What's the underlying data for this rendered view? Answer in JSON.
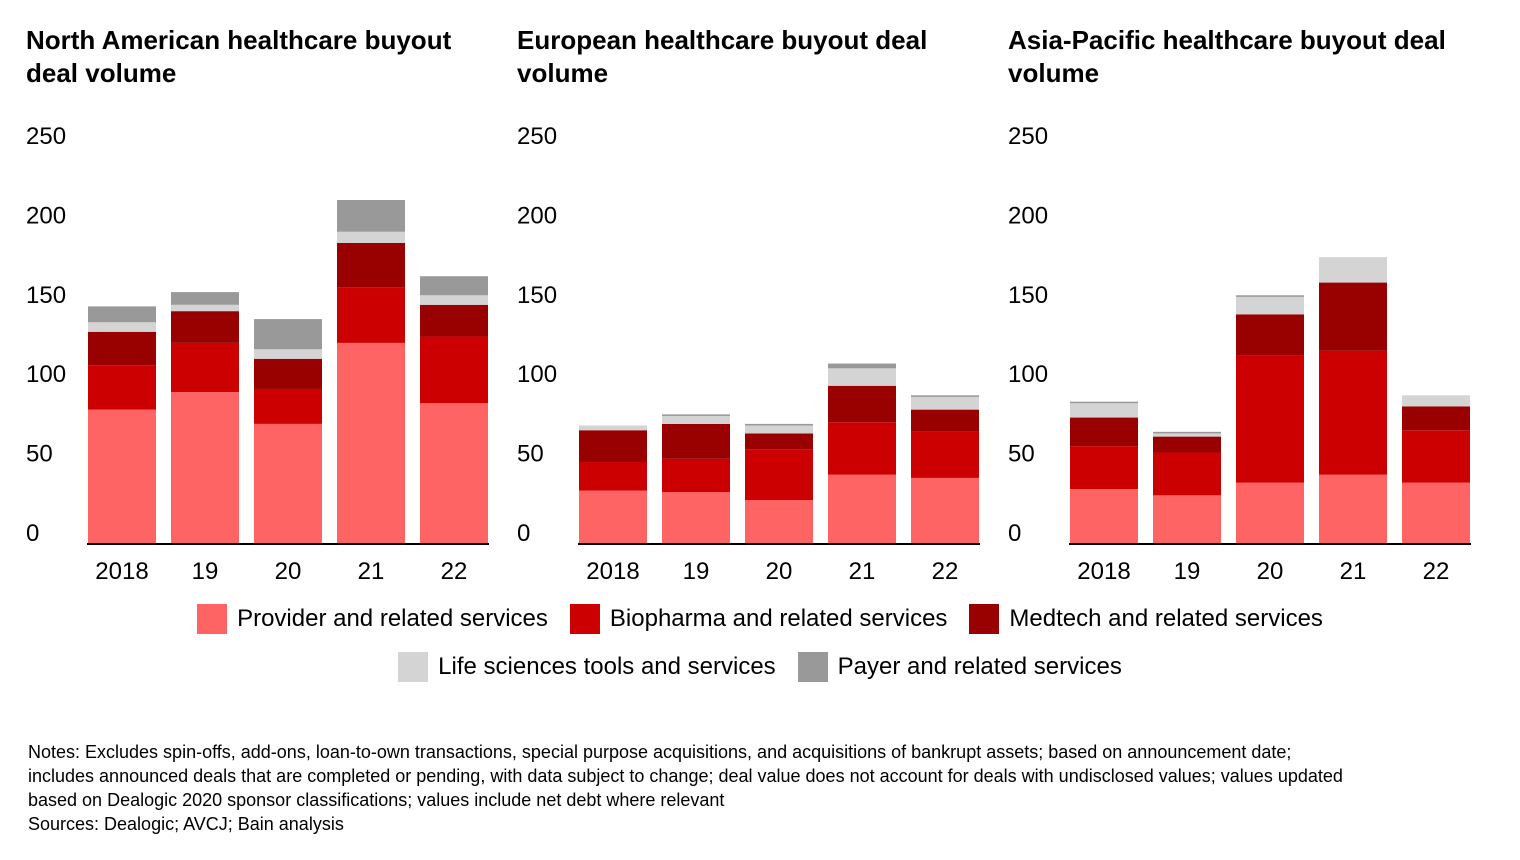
{
  "colors": {
    "provider": "#ff6464",
    "biopharma": "#cc0000",
    "medtech": "#990000",
    "life_sciences": "#d4d4d4",
    "payer": "#999999"
  },
  "legend": {
    "row1": [
      {
        "key": "provider",
        "label": "Provider and related services"
      },
      {
        "key": "biopharma",
        "label": "Biopharma and related services"
      },
      {
        "key": "medtech",
        "label": "Medtech and related services"
      }
    ],
    "row2": [
      {
        "key": "life_sciences",
        "label": "Life sciences tools and services"
      },
      {
        "key": "payer",
        "label": "Payer and related services"
      }
    ]
  },
  "chart_data": [
    {
      "type": "bar",
      "stacked": true,
      "title": "North American healthcare buyout deal volume",
      "categories": [
        "2018",
        "19",
        "20",
        "21",
        "22"
      ],
      "ylim": [
        0,
        250
      ],
      "yticks": [
        "0",
        "50",
        "100",
        "150",
        "200",
        "250"
      ],
      "series": [
        {
          "name": "Provider and related services",
          "key": "provider",
          "values": [
            84,
            95,
            75,
            126,
            88
          ]
        },
        {
          "name": "Biopharma and related services",
          "key": "biopharma",
          "values": [
            28,
            31,
            22,
            35,
            42
          ]
        },
        {
          "name": "Medtech and related services",
          "key": "medtech",
          "values": [
            21,
            20,
            19,
            28,
            20
          ]
        },
        {
          "name": "Life sciences tools and services",
          "key": "life_sciences",
          "values": [
            6,
            4,
            6,
            7,
            6
          ]
        },
        {
          "name": "Payer and related services",
          "key": "payer",
          "values": [
            10,
            8,
            19,
            20,
            12
          ]
        }
      ]
    },
    {
      "type": "bar",
      "stacked": true,
      "title": "European healthcare buyout deal volume",
      "categories": [
        "2018",
        "19",
        "20",
        "21",
        "22"
      ],
      "ylim": [
        0,
        250
      ],
      "yticks": [
        "0",
        "50",
        "100",
        "150",
        "200",
        "250"
      ],
      "series": [
        {
          "name": "Provider and related services",
          "key": "provider",
          "values": [
            33,
            32,
            27,
            43,
            41
          ]
        },
        {
          "name": "Biopharma and related services",
          "key": "biopharma",
          "values": [
            18,
            21,
            32,
            33,
            29
          ]
        },
        {
          "name": "Medtech and related services",
          "key": "medtech",
          "values": [
            20,
            22,
            10,
            23,
            14
          ]
        },
        {
          "name": "Life sciences tools and services",
          "key": "life_sciences",
          "values": [
            3,
            5,
            5,
            11,
            8
          ]
        },
        {
          "name": "Payer and related services",
          "key": "payer",
          "values": [
            0,
            1,
            1,
            3,
            1
          ]
        }
      ]
    },
    {
      "type": "bar",
      "stacked": true,
      "title": "Asia-Pacific healthcare buyout deal volume",
      "categories": [
        "2018",
        "19",
        "20",
        "21",
        "22"
      ],
      "ylim": [
        0,
        250
      ],
      "yticks": [
        "0",
        "50",
        "100",
        "150",
        "200",
        "250"
      ],
      "series": [
        {
          "name": "Provider and related services",
          "key": "provider",
          "values": [
            34,
            30,
            38,
            43,
            38
          ]
        },
        {
          "name": "Biopharma and related services",
          "key": "biopharma",
          "values": [
            27,
            27,
            80,
            78,
            33
          ]
        },
        {
          "name": "Medtech and related services",
          "key": "medtech",
          "values": [
            18,
            10,
            26,
            43,
            15
          ]
        },
        {
          "name": "Life sciences tools and services",
          "key": "life_sciences",
          "values": [
            9,
            2,
            11,
            16,
            7
          ]
        },
        {
          "name": "Payer and related services",
          "key": "payer",
          "values": [
            1,
            1,
            1,
            0,
            0
          ]
        }
      ]
    }
  ],
  "notes": {
    "line1": "Notes: Excludes spin-offs, add-ons, loan-to-own transactions, special purpose acquisitions, and acquisitions of bankrupt assets; based on announcement date;",
    "line2": "includes announced deals that are completed or pending, with data subject to change; deal value does not account for deals with undisclosed values; values updated",
    "line3": "based on Dealogic 2020 sponsor classifications; values include net debt where relevant",
    "sources": "Sources: Dealogic; AVCJ; Bain analysis"
  }
}
